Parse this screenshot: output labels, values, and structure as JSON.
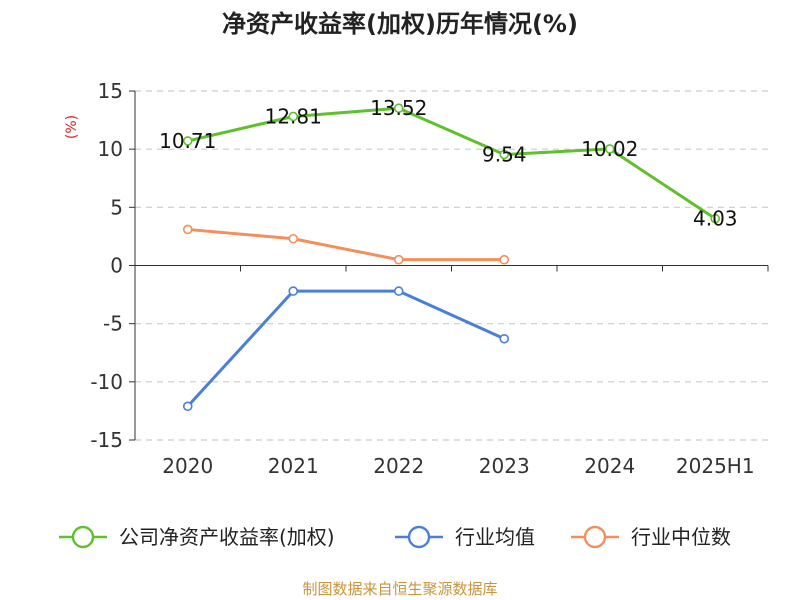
{
  "chart_data": {
    "type": "line",
    "title": "净资产收益率(加权)历年情况(%)",
    "ylabel": "(%)",
    "categories": [
      "2020",
      "2021",
      "2022",
      "2023",
      "2024",
      "2025H1"
    ],
    "ylim": [
      -15,
      15
    ],
    "yticks": [
      15,
      10,
      5,
      0,
      -5,
      -10,
      -15
    ],
    "grid": true,
    "legend_position": "bottom",
    "series": [
      {
        "name": "公司净资产收益率(加权)",
        "color": "#5ec12b",
        "values": [
          10.71,
          12.81,
          13.52,
          9.54,
          10.02,
          4.03
        ],
        "labels": [
          "10.71",
          "12.81",
          "13.52",
          "9.54",
          "10.02",
          "4.03"
        ]
      },
      {
        "name": "行业均值",
        "color": "#4a7fd6",
        "values": [
          -12.1,
          -2.2,
          -2.2,
          -6.3,
          null,
          null
        ]
      },
      {
        "name": "行业中位数",
        "color": "#f28f5a",
        "values": [
          3.1,
          2.3,
          0.5,
          0.5,
          null,
          null
        ]
      }
    ]
  },
  "source": "制图数据来自恒生聚源数据库",
  "colors": {
    "ylabel": "#dd2222",
    "source": "#c8953c",
    "grid": "#cccccc",
    "axis": "#333333"
  }
}
